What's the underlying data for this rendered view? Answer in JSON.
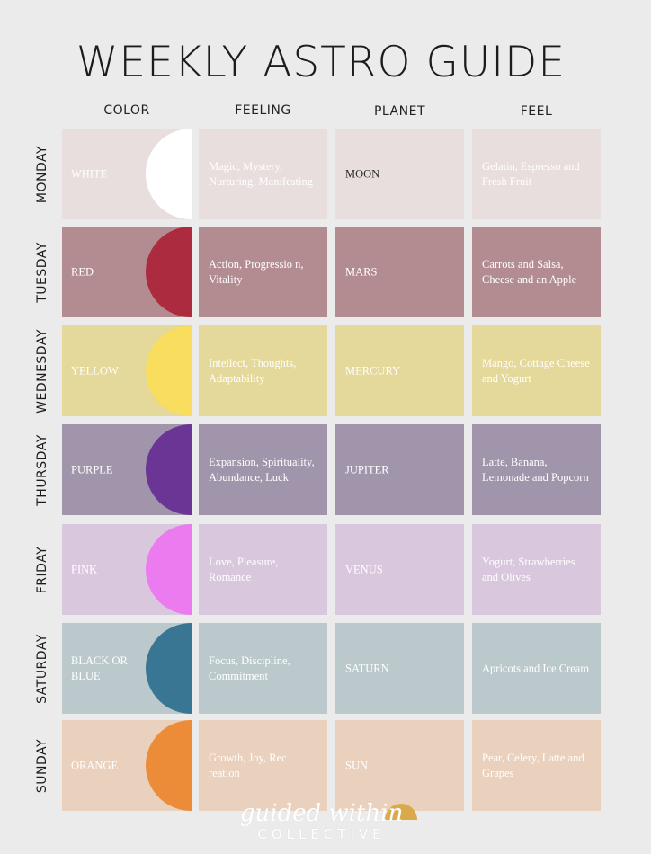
{
  "title": "WEEKLY ASTRO GUIDE",
  "headers": {
    "color": "COLOR",
    "feeling": "FEELING",
    "planet": "PLANET",
    "feel": "FEEL"
  },
  "rows": [
    {
      "day": "MONDAY",
      "color_name": "WHITE",
      "swatch": "#ffffff",
      "cell_bg": "#e7dedd",
      "feeling": "Magic, Mystery, Nurturing, Manifesting",
      "planet": "MOON",
      "feel": "Gelatin, Espresso and Fresh Fruit",
      "planet_text_color": "#2a2a2a"
    },
    {
      "day": "TUESDAY",
      "color_name": "RED",
      "swatch": "#ad2b3e",
      "cell_bg": "#b38c91",
      "feeling": "Action, Progressio n, Vitality",
      "planet": "MARS",
      "feel": "Carrots and Salsa, Cheese and an Apple",
      "planet_text_color": "#ffffff"
    },
    {
      "day": "WEDNESDAY",
      "color_name": "YELLOW",
      "swatch": "#f8dd5f",
      "cell_bg": "#e4d89a",
      "feeling": "Intellect, Thoughts, Adaptability",
      "planet": "MERCURY",
      "feel": "Mango, Cottage Cheese and Yogurt",
      "planet_text_color": "#ffffff"
    },
    {
      "day": "THURSDAY",
      "color_name": "PURPLE",
      "swatch": "#6b3596",
      "cell_bg": "#a195ab",
      "feeling": "Expansion, Spirituality, Abundance, Luck",
      "planet": "JUPITER",
      "feel": "Latte, Banana, Lemonade and Popcorn",
      "planet_text_color": "#ffffff"
    },
    {
      "day": "FRIDAY",
      "color_name": "PINK",
      "swatch": "#ec7bef",
      "cell_bg": "#d9c8dd",
      "feeling": "Love, Pleasure, Romance",
      "planet": "VENUS",
      "feel": "Yogurt, Strawberries and Olives",
      "planet_text_color": "#ffffff"
    },
    {
      "day": "SATURDAY",
      "color_name": "BLACK OR BLUE",
      "swatch": "#397694",
      "cell_bg": "#bbc9cd",
      "feeling": "Focus, Discipline, Commitment",
      "planet": "SATURN",
      "feel": "Apricots and Ice Cream",
      "planet_text_color": "#ffffff"
    },
    {
      "day": "SUNDAY",
      "color_name": "ORANGE",
      "swatch": "#ec8c39",
      "cell_bg": "#ead1bd",
      "feeling": "Growth, Joy, Rec reation",
      "planet": "SUN",
      "feel": "Pear, Celery, Latte and Grapes",
      "planet_text_color": "#ffffff"
    }
  ],
  "logo": {
    "script": "guided within",
    "sub": "COLLECTIVE",
    "accent": "#d9a94a"
  }
}
